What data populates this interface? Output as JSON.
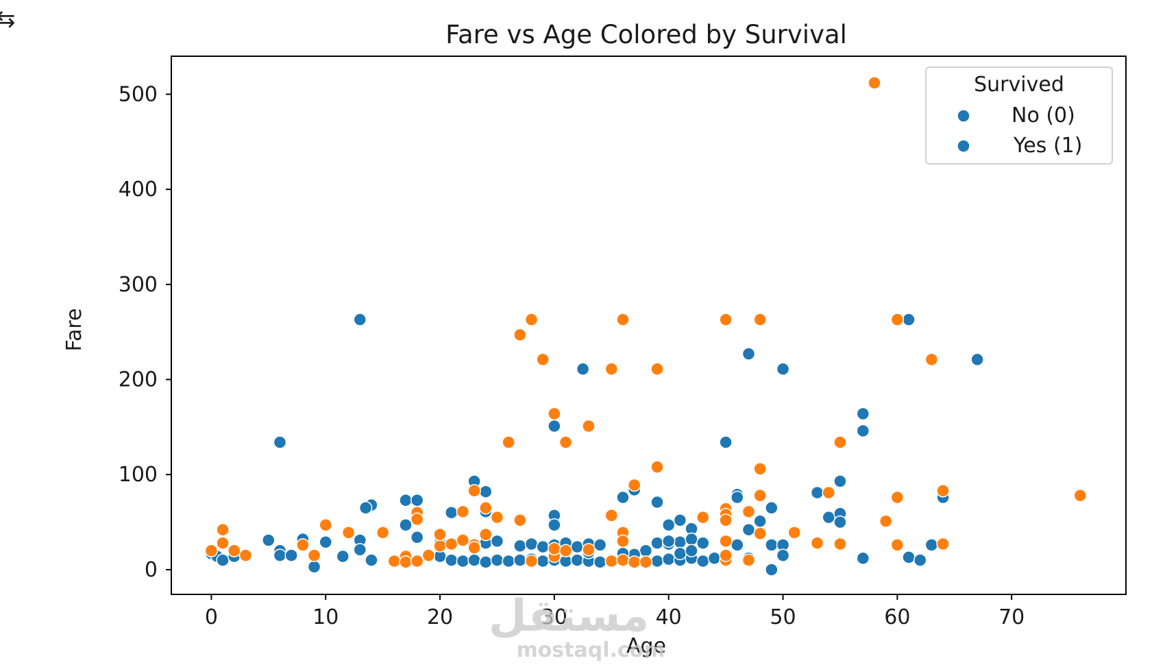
{
  "corner_glyph": "⇆",
  "watermark": {
    "arabic": "مستقل",
    "latin": "mostaql.com"
  },
  "chart_data": {
    "type": "scatter",
    "title": "Fare vs Age Colored by Survival",
    "xlabel": "Age",
    "ylabel": "Fare",
    "xlim": [
      -3.5,
      80
    ],
    "ylim": [
      -26,
      540
    ],
    "xticks": [
      0,
      10,
      20,
      30,
      40,
      50,
      60,
      70
    ],
    "yticks": [
      0,
      100,
      200,
      300,
      400,
      500
    ],
    "grid": false,
    "legend": {
      "title": "Survived",
      "placement": "top-right",
      "entries": [
        {
          "label": "No (0)",
          "color": "#1f77b4"
        },
        {
          "label": "Yes (1)",
          "color": "#1f77b4"
        }
      ]
    },
    "colors": {
      "series_0": "#1f77b4",
      "series_1": "#ff7f0e"
    },
    "series": [
      {
        "id": "0",
        "color": "#1f77b4",
        "points": [
          [
            13,
            263
          ],
          [
            6,
            134
          ],
          [
            30,
            151
          ],
          [
            32.5,
            211
          ],
          [
            47,
            227
          ],
          [
            50,
            211
          ],
          [
            61,
            263
          ],
          [
            67,
            221
          ],
          [
            57,
            164
          ],
          [
            57,
            146
          ],
          [
            45,
            134
          ],
          [
            23,
            93
          ],
          [
            24,
            82
          ],
          [
            17,
            73
          ],
          [
            18,
            73
          ],
          [
            14,
            68
          ],
          [
            13.5,
            65
          ],
          [
            30,
            57
          ],
          [
            30,
            47
          ],
          [
            37,
            84
          ],
          [
            36,
            76
          ],
          [
            39,
            71
          ],
          [
            46,
            79
          ],
          [
            46,
            76
          ],
          [
            49,
            65
          ],
          [
            48,
            51
          ],
          [
            40,
            47
          ],
          [
            41,
            52
          ],
          [
            42,
            43
          ],
          [
            47,
            42
          ],
          [
            21,
            60
          ],
          [
            24,
            61
          ],
          [
            17,
            47
          ],
          [
            18,
            34
          ],
          [
            5,
            31
          ],
          [
            8,
            32
          ],
          [
            10,
            29
          ],
          [
            13,
            31
          ],
          [
            6,
            20
          ],
          [
            0,
            17
          ],
          [
            0.5,
            14
          ],
          [
            1,
            10
          ],
          [
            2,
            21
          ],
          [
            2,
            14
          ],
          [
            6,
            15
          ],
          [
            7,
            15
          ],
          [
            9,
            3
          ],
          [
            11.5,
            14
          ],
          [
            13,
            21
          ],
          [
            14,
            10
          ],
          [
            18,
            10
          ],
          [
            20,
            14
          ],
          [
            21,
            10
          ],
          [
            22,
            9
          ],
          [
            23,
            10
          ],
          [
            24,
            8
          ],
          [
            25,
            10
          ],
          [
            26,
            9
          ],
          [
            27,
            10
          ],
          [
            28,
            11
          ],
          [
            29,
            9
          ],
          [
            30,
            10
          ],
          [
            31,
            9
          ],
          [
            32,
            10
          ],
          [
            33,
            9
          ],
          [
            34,
            8
          ],
          [
            35,
            9
          ],
          [
            36,
            9
          ],
          [
            37,
            12
          ],
          [
            38,
            8
          ],
          [
            39,
            9
          ],
          [
            40,
            11
          ],
          [
            41,
            10
          ],
          [
            42,
            12
          ],
          [
            43,
            9
          ],
          [
            44,
            12
          ],
          [
            22,
            32
          ],
          [
            24,
            28
          ],
          [
            25,
            30
          ],
          [
            27,
            25
          ],
          [
            28,
            27
          ],
          [
            29,
            24
          ],
          [
            30,
            26
          ],
          [
            31,
            28
          ],
          [
            32,
            24
          ],
          [
            33,
            27
          ],
          [
            34,
            26
          ],
          [
            38,
            20
          ],
          [
            39,
            28
          ],
          [
            40,
            27
          ],
          [
            41,
            29
          ],
          [
            42,
            32
          ],
          [
            43,
            28
          ],
          [
            46,
            26
          ],
          [
            49,
            26
          ],
          [
            50,
            26
          ],
          [
            50,
            15
          ],
          [
            53,
            81
          ],
          [
            54,
            55
          ],
          [
            55,
            59
          ],
          [
            55,
            50
          ],
          [
            55,
            93
          ],
          [
            57,
            12
          ],
          [
            61,
            13
          ],
          [
            62,
            10
          ],
          [
            63,
            26
          ],
          [
            64,
            76
          ],
          [
            49,
            0
          ],
          [
            47,
            12
          ],
          [
            40,
            30
          ],
          [
            37,
            16
          ],
          [
            41,
            17
          ],
          [
            42,
            20
          ],
          [
            36,
            17
          ],
          [
            33,
            18
          ],
          [
            20,
            28
          ]
        ]
      },
      {
        "id": "1",
        "color": "#ff7f0e",
        "points": [
          [
            58,
            512
          ],
          [
            28,
            263
          ],
          [
            36,
            263
          ],
          [
            45,
            263
          ],
          [
            48,
            263
          ],
          [
            60,
            263
          ],
          [
            27,
            247
          ],
          [
            29,
            221
          ],
          [
            63,
            221
          ],
          [
            35,
            211
          ],
          [
            39,
            211
          ],
          [
            30,
            164
          ],
          [
            33,
            151
          ],
          [
            31,
            134
          ],
          [
            26,
            134
          ],
          [
            55,
            134
          ],
          [
            39,
            108
          ],
          [
            48,
            106
          ],
          [
            37,
            89
          ],
          [
            23,
            83
          ],
          [
            24,
            65
          ],
          [
            22,
            61
          ],
          [
            18,
            60
          ],
          [
            18,
            53
          ],
          [
            25,
            55
          ],
          [
            27,
            52
          ],
          [
            35,
            57
          ],
          [
            45,
            64
          ],
          [
            45,
            58
          ],
          [
            45,
            52
          ],
          [
            47,
            61
          ],
          [
            48,
            78
          ],
          [
            48,
            38
          ],
          [
            51,
            39
          ],
          [
            54,
            81
          ],
          [
            59,
            51
          ],
          [
            60,
            76
          ],
          [
            64,
            83
          ],
          [
            76,
            78
          ],
          [
            43,
            55
          ],
          [
            36,
            39
          ],
          [
            36,
            30
          ],
          [
            45,
            30
          ],
          [
            53,
            28
          ],
          [
            55,
            27
          ],
          [
            60,
            26
          ],
          [
            64,
            27
          ],
          [
            10,
            47
          ],
          [
            12,
            39
          ],
          [
            15,
            39
          ],
          [
            1,
            42
          ],
          [
            1,
            28
          ],
          [
            2,
            20
          ],
          [
            0,
            20
          ],
          [
            3,
            15
          ],
          [
            8,
            26
          ],
          [
            9,
            15
          ],
          [
            17,
            14
          ],
          [
            16,
            9
          ],
          [
            17,
            8
          ],
          [
            18,
            9
          ],
          [
            19,
            15
          ],
          [
            20,
            25
          ],
          [
            20,
            37
          ],
          [
            21,
            27
          ],
          [
            22,
            31
          ],
          [
            23,
            26
          ],
          [
            24,
            37
          ],
          [
            23,
            23
          ],
          [
            28,
            9
          ],
          [
            30,
            14
          ],
          [
            30,
            22
          ],
          [
            31,
            20
          ],
          [
            33,
            21
          ],
          [
            35,
            9
          ],
          [
            36,
            10
          ],
          [
            37,
            8
          ],
          [
            38,
            8
          ],
          [
            45,
            10
          ],
          [
            45,
            15
          ],
          [
            47,
            10
          ]
        ]
      }
    ]
  }
}
